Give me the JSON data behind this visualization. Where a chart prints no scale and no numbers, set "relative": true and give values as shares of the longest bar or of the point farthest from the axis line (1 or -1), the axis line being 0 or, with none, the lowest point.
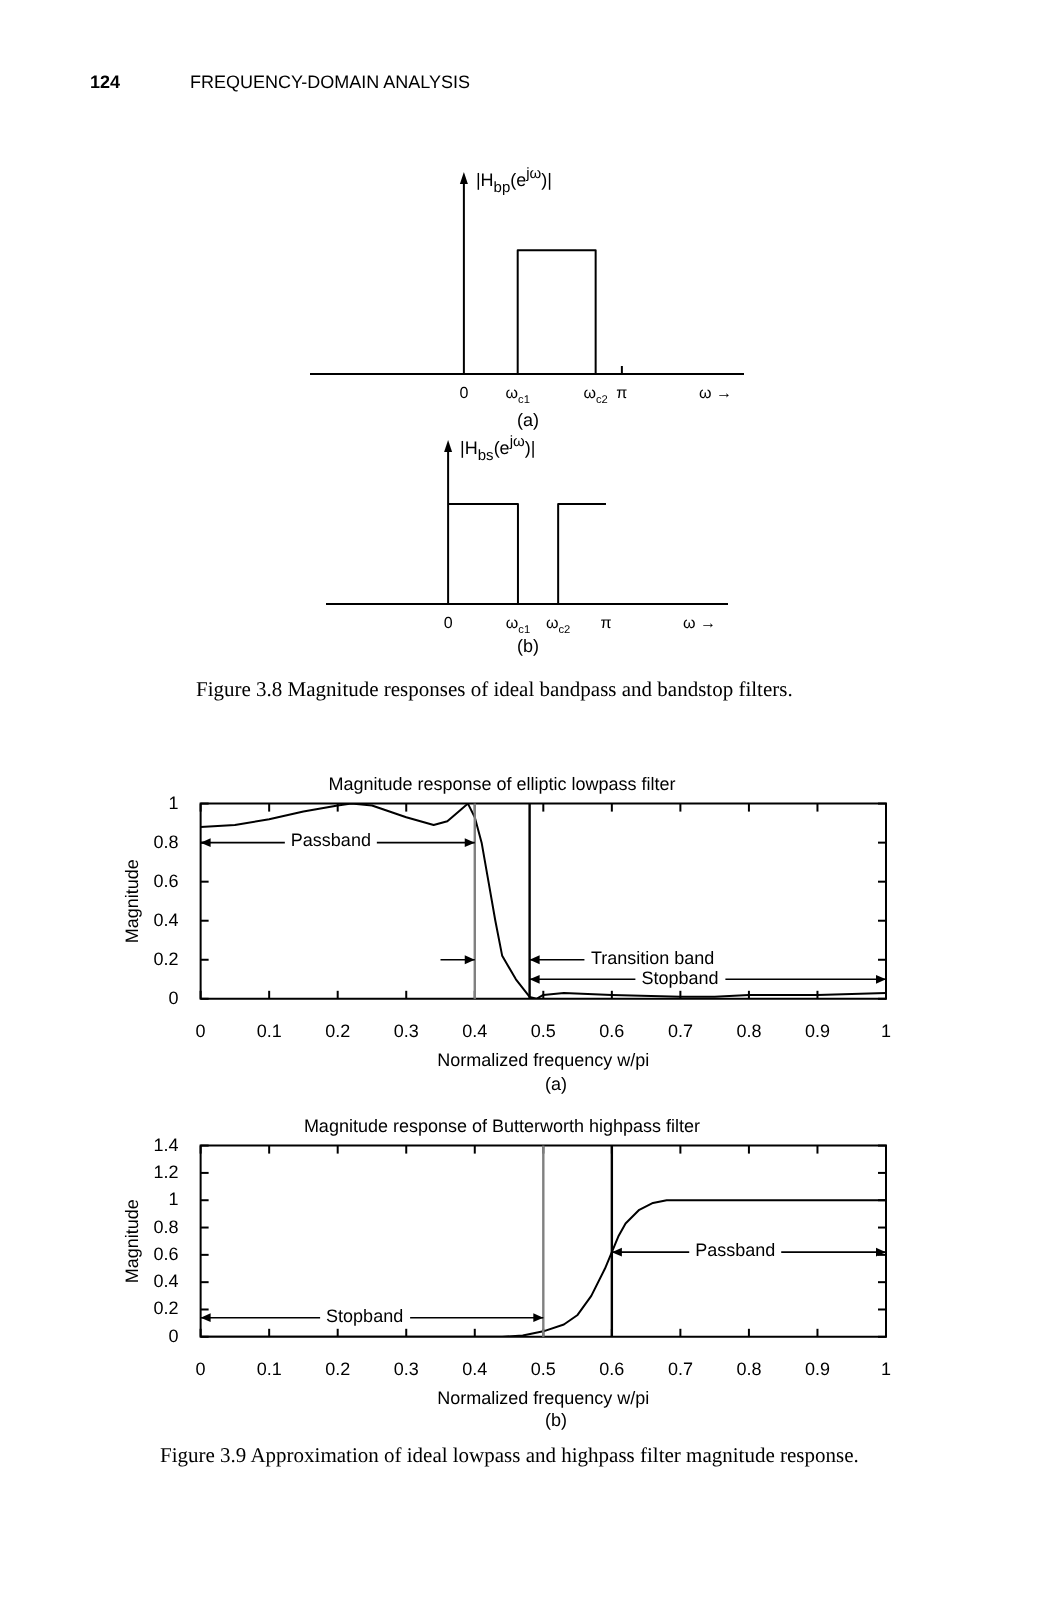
{
  "chart_data": [
    {
      "type": "line",
      "relative": true,
      "ylabel": "|H$_{bp}$(e$^{jω}$)|",
      "xlabel": "ω →",
      "annotations": [
        "124",
        "FREQUENCY-DOMAIN ANALYSIS",
        "(a)"
      ],
      "xlim": [
        -3.06,
        5.57
      ],
      "xticks": [
        0,
        {
          "value": 1.07,
          "label": "ω$_{c1}$"
        },
        {
          "value": 2.62,
          "label": "ω$_{c2}$"
        },
        {
          "value": 3.1416,
          "label": "π"
        }
      ],
      "x": [
        1.07,
        1.07,
        2.62,
        2.62
      ],
      "values": [
        0,
        1,
        1,
        0
      ],
      "color": "#000000"
    },
    {
      "type": "line",
      "relative": true,
      "ylabel": "|H$_{bs}$(e$^{jω}$)|",
      "xlabel": "ω →",
      "annotations": [
        "(b)",
        "Figure 3.8   Magnitude responses of ideal bandpass and bandstop filters."
      ],
      "xlim": [
        -2.43,
        5.57
      ],
      "xticks": [
        0,
        {
          "value": 1.39,
          "label": "ω$_{c1}$"
        },
        {
          "value": 2.19,
          "label": "ω$_{c2}$"
        },
        {
          "value": 3.1416,
          "label": "π"
        }
      ],
      "series": [
        {
          "color": "#000000",
          "x": [
            0,
            1.39,
            1.39
          ],
          "values": [
            1,
            1,
            0
          ]
        },
        {
          "color": "#000000",
          "x": [
            2.19,
            2.19,
            3.1416
          ],
          "values": [
            0,
            1,
            1
          ]
        }
      ]
    },
    {
      "type": "line",
      "title": "Magnitude response of elliptic lowpass filter",
      "xlabel": "Normalized frequency w/pi",
      "ylabel": "Magnitude",
      "xlim": [
        0,
        1
      ],
      "xticks": [
        0,
        0.1,
        0.2,
        0.3,
        0.4,
        0.5,
        0.6,
        0.7,
        0.8,
        0.9,
        1
      ],
      "ylim": [
        0,
        1
      ],
      "yticks": [
        0,
        0.2,
        0.4,
        0.6,
        0.8,
        1
      ],
      "x": [
        0,
        0.05,
        0.1,
        0.15,
        0.2,
        0.22,
        0.25,
        0.3,
        0.34,
        0.36,
        0.38,
        0.39,
        0.4,
        0.41,
        0.42,
        0.43,
        0.44,
        0.46,
        0.48,
        0.49,
        0.5,
        0.53,
        0.6,
        0.7,
        0.75,
        0.8,
        0.9,
        1
      ],
      "values": [
        0.88,
        0.89,
        0.92,
        0.96,
        0.99,
        1,
        0.99,
        0.93,
        0.89,
        0.91,
        0.97,
        1,
        0.93,
        0.8,
        0.6,
        0.4,
        0.22,
        0.1,
        0.01,
        0,
        0.02,
        0.03,
        0.02,
        0.01,
        0.01,
        0.02,
        0.02,
        0.03
      ],
      "color": "#000000",
      "ref_lines": [
        {
          "axis": "x",
          "value": 0.4,
          "color": "#808080"
        },
        {
          "axis": "x",
          "value": 0.48,
          "color": "#000000"
        }
      ],
      "annotations": [
        {
          "text": "Passband",
          "x": 0.4,
          "y": 0.8
        },
        "Transition band",
        {
          "text": "Stopband",
          "x": 0.48,
          "y": 0.1
        },
        "(a)"
      ]
    },
    {
      "type": "line",
      "title": "Magnitude response of Butterworth highpass filter",
      "xlabel": "Normalized frequency w/pi",
      "ylabel": "Magnitude",
      "xlim": [
        0,
        1
      ],
      "xticks": [
        0,
        0.1,
        0.2,
        0.3,
        0.4,
        0.5,
        0.6,
        0.7,
        0.8,
        0.9,
        1
      ],
      "ylim": [
        0,
        1.4
      ],
      "yticks": [
        0,
        0.2,
        0.4,
        0.6,
        0.8,
        1,
        1.2,
        1.4
      ],
      "x": [
        0,
        0.3,
        0.44,
        0.47,
        0.5,
        0.53,
        0.55,
        0.57,
        0.59,
        0.6,
        0.61,
        0.62,
        0.64,
        0.66,
        0.68,
        0.7,
        1
      ],
      "values": [
        0,
        0,
        0,
        0.01,
        0.04,
        0.09,
        0.16,
        0.3,
        0.5,
        0.62,
        0.74,
        0.83,
        0.93,
        0.98,
        1,
        1,
        1
      ],
      "color": "#000000",
      "ref_lines": [
        {
          "axis": "x",
          "value": 0.5,
          "color": "#808080"
        },
        {
          "axis": "x",
          "value": 0.6,
          "color": "#000000"
        }
      ],
      "annotations": [
        {
          "text": "Stopband",
          "x": 0.5,
          "y": 0.14
        },
        "Passband",
        "(b)",
        "Figure 3.9   Approximation of ideal lowpass and highpass filter magnitude response."
      ]
    }
  ]
}
